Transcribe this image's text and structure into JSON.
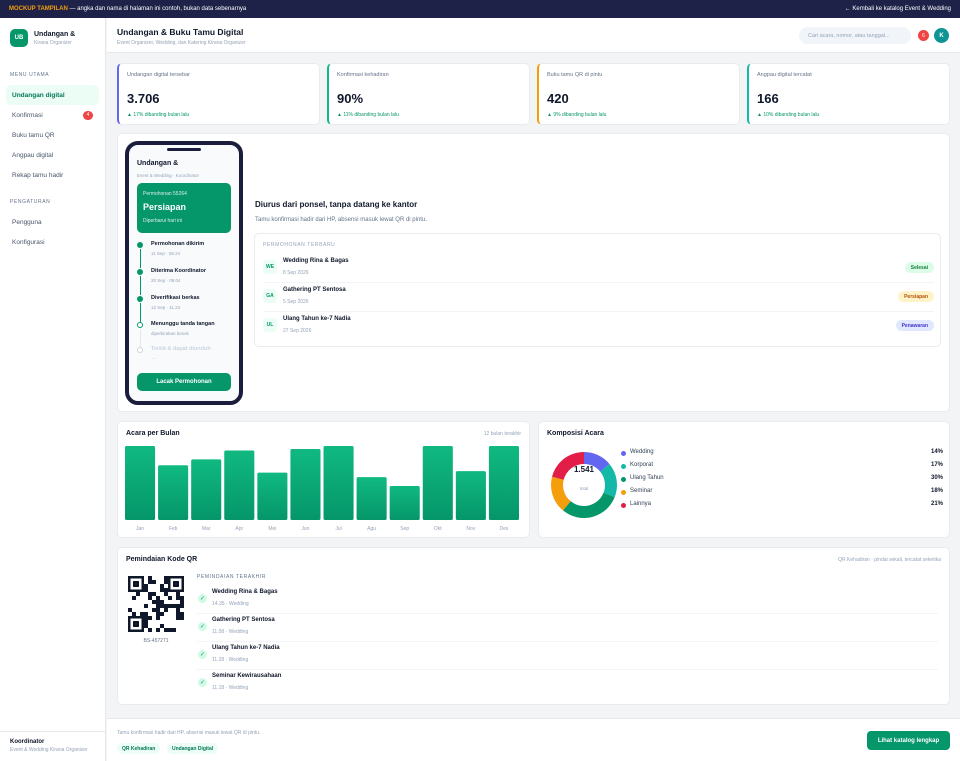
{
  "banner": {
    "tag": "MOCKUP TAMPILAN",
    "text": " — angka dan nama di halaman ini contoh, bukan data sebenarnya",
    "back": "← Kembali ke katalog Event & Wedding"
  },
  "brand": {
    "initials": "UB",
    "name": "Undangan &",
    "sub": "Kirana Organizer"
  },
  "sidebar": {
    "main_label": "MENU UTAMA",
    "items": [
      {
        "label": "Undangan digital",
        "badge": ""
      },
      {
        "label": "Konfirmasi",
        "badge": "4"
      },
      {
        "label": "Buku tamu QR",
        "badge": ""
      },
      {
        "label": "Angpau digital",
        "badge": ""
      },
      {
        "label": "Rekap tamu hadir",
        "badge": ""
      }
    ],
    "settings_label": "PENGATURAN",
    "settings": [
      {
        "label": "Pengguna"
      },
      {
        "label": "Konfigurasi"
      }
    ],
    "footer": {
      "title": "Koordinator",
      "sub": "Event & Wedding Kirana Organizer"
    }
  },
  "header": {
    "title": "Undangan & Buku Tamu Digital",
    "subtitle": "Event Organizer, Wedding, dan Katering Kirana Organizer",
    "search_placeholder": "Cari acara, nomor, atau tanggal...",
    "notif_count": "6",
    "avatar": "K"
  },
  "stats": [
    {
      "label": "Undangan digital tersebar",
      "value": "3.706",
      "change": "▲ 17% dibanding bulan lalu",
      "color": "#6366f1"
    },
    {
      "label": "Konfirmasi kehadiran",
      "value": "90%",
      "change": "▲ 11% dibanding bulan lalu",
      "color": "#10b981"
    },
    {
      "label": "Buku tamu QR di pintu",
      "value": "420",
      "change": "▲ 9% dibanding bulan lalu",
      "color": "#f59e0b"
    },
    {
      "label": "Angpau digital tercatat",
      "value": "166",
      "change": "▲ 10% dibanding bulan lalu",
      "color": "#14b8a6"
    }
  ],
  "phone": {
    "title": "Undangan &",
    "sub": "Event & Wedding · Koordinator",
    "card": {
      "no": "Permohonan 55264",
      "status": "Persiapan",
      "update": "Diperbarui hari ini"
    },
    "timeline": [
      {
        "title": "Permohonan dikirim",
        "date": "11 Sep · 08.24",
        "state": "done"
      },
      {
        "title": "Diterima Koordinator",
        "date": "20 Sep · 08.04",
        "state": "done"
      },
      {
        "title": "Diverifikasi berkas",
        "date": "12 Sep · 11.23",
        "state": "done"
      },
      {
        "title": "Menunggu tanda tangan",
        "date": "diperkirakan besok",
        "state": "current"
      },
      {
        "title": "Terbit & dapat diunduh",
        "date": "—",
        "state": "pending"
      }
    ],
    "button": "Lacak Permohonan"
  },
  "hero": {
    "heading": "Diurus dari ponsel, tanpa datang ke kantor",
    "text": "Tamu konfirmasi hadir dari HP, absensi masuk lewat QR di pintu."
  },
  "requests": {
    "label": "PERMOHONAN TERBARU",
    "rows": [
      {
        "initials": "WE",
        "title": "Wedding Rina & Bagas",
        "date": "8 Sep 2026",
        "status": "Selesai",
        "bg": "#dcfce7",
        "fg": "#15803d"
      },
      {
        "initials": "GA",
        "title": "Gathering PT Sentosa",
        "date": "5 Sep 2026",
        "status": "Persiapan",
        "bg": "#fef3c7",
        "fg": "#b45309"
      },
      {
        "initials": "UL",
        "title": "Ulang Tahun ke-7 Nadia",
        "date": "27 Sep 2026",
        "status": "Penawaran",
        "bg": "#e0e7ff",
        "fg": "#4338ca"
      }
    ]
  },
  "bar_card": {
    "title": "Acara per Bulan",
    "note": "12 bulan terakhir"
  },
  "donut_card": {
    "title": "Komposisi Acara",
    "total": "1.541",
    "total_label": "total"
  },
  "chart_data": [
    {
      "type": "bar",
      "categories": [
        "Jan",
        "Feb",
        "Mar",
        "Apr",
        "Mei",
        "Jun",
        "Jul",
        "Agu",
        "Sep",
        "Okt",
        "Nov",
        "Des"
      ],
      "values": [
        100,
        74,
        82,
        94,
        64,
        96,
        100,
        58,
        46,
        100,
        66,
        100
      ],
      "color": "#10b981"
    },
    {
      "type": "pie",
      "categories": [
        "Wedding",
        "Korporat",
        "Ulang Tahun",
        "Seminar",
        "Lainnya"
      ],
      "values": [
        14,
        17,
        30,
        18,
        21
      ],
      "labels": [
        "14%",
        "17%",
        "30%",
        "18%",
        "21%"
      ],
      "colors": [
        "#6366f1",
        "#14b8a6",
        "#059669",
        "#f59e0b",
        "#e11d48"
      ]
    }
  ],
  "qr_card": {
    "title": "Pemindaian Kode QR",
    "note": "QR Kehadiran · pindai sekali, tercatat seketika",
    "code": "BS-457271",
    "scan_label": "PEMINDAIAN TERAKHIR",
    "scans": [
      {
        "title": "Wedding Rina & Bagas",
        "meta": "14.35 · Wedding"
      },
      {
        "title": "Gathering PT Sentosa",
        "meta": "11.58 · Wedding"
      },
      {
        "title": "Ulang Tahun ke-7 Nadia",
        "meta": "11.28 · Wedding"
      },
      {
        "title": "Seminar Kewirausahaan",
        "meta": "11.18 · Wedding"
      }
    ]
  },
  "footer": {
    "text": "Tamu konfirmasi hadir dari HP, absensi masuk lewat QR di pintu.",
    "chips": [
      "QR Kehadiran",
      "Undangan Digital"
    ],
    "cta": "Lihat katalog lengkap"
  }
}
